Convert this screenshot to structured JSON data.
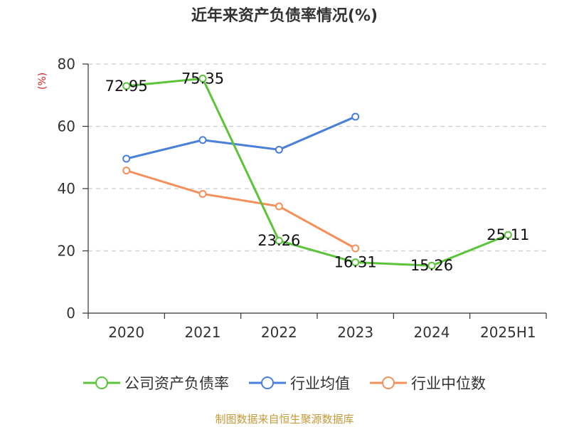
{
  "title": "近年来资产负债率情况(%)",
  "y_unit": "(%)",
  "footer": "制图数据来自恒生聚源数据库",
  "colors": {
    "company": "#5cc43a",
    "industry_avg": "#4a80d9",
    "industry_median": "#f5905a",
    "unit_label": "#d62020",
    "axis": "#333333",
    "grid": "#cccccc"
  },
  "chart_data": {
    "type": "line",
    "title": "近年来资产负债率情况(%)",
    "ylabel": "(%)",
    "categories": [
      "2020",
      "2021",
      "2022",
      "2023",
      "2024",
      "2025H1"
    ],
    "ylim": [
      0,
      80
    ],
    "yticks": [
      0,
      20,
      40,
      60,
      80
    ],
    "grid": true,
    "legend_position": "bottom",
    "series": [
      {
        "name": "公司资产负债率",
        "color": "#5cc43a",
        "values": [
          72.95,
          75.35,
          23.26,
          16.31,
          15.26,
          25.11
        ],
        "labels": [
          "72.95",
          "75.35",
          "23.26",
          "16.31",
          "15.26",
          "25.11"
        ]
      },
      {
        "name": "行业均值",
        "color": "#4a80d9",
        "values": [
          49.6,
          55.6,
          52.5,
          63.1,
          null,
          null
        ]
      },
      {
        "name": "行业中位数",
        "color": "#f5905a",
        "values": [
          45.8,
          38.3,
          34.3,
          20.8,
          null,
          null
        ]
      }
    ]
  }
}
